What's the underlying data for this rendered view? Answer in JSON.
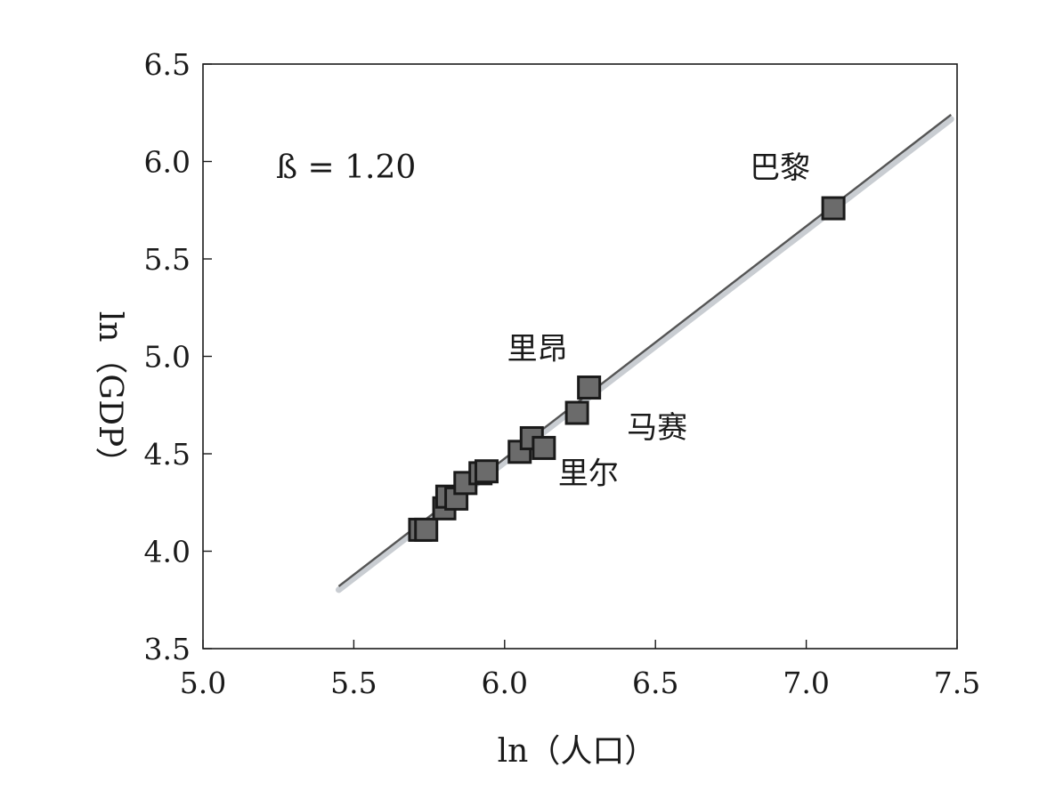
{
  "chart_data": {
    "type": "scatter",
    "xlabel": "ln（人口）",
    "ylabel": "ln（GDP）",
    "xlim": [
      5.0,
      7.5
    ],
    "ylim": [
      3.5,
      6.5
    ],
    "xticks": [
      "5.0",
      "5.5",
      "6.0",
      "6.5",
      "7.0",
      "7.5"
    ],
    "yticks": [
      "3.5",
      "4.0",
      "4.5",
      "5.0",
      "5.5",
      "6.0",
      "6.5"
    ],
    "annotation": "ß = 1.20",
    "grid": false,
    "points": [
      {
        "x": 5.72,
        "y": 4.11
      },
      {
        "x": 5.74,
        "y": 4.11
      },
      {
        "x": 5.8,
        "y": 4.22
      },
      {
        "x": 5.81,
        "y": 4.28
      },
      {
        "x": 5.84,
        "y": 4.27
      },
      {
        "x": 5.87,
        "y": 4.35
      },
      {
        "x": 5.92,
        "y": 4.4
      },
      {
        "x": 5.94,
        "y": 4.41
      },
      {
        "x": 6.05,
        "y": 4.51
      },
      {
        "x": 6.09,
        "y": 4.58
      },
      {
        "x": 6.13,
        "y": 4.53
      },
      {
        "x": 6.24,
        "y": 4.71
      },
      {
        "x": 6.28,
        "y": 4.84
      },
      {
        "x": 7.09,
        "y": 5.76
      }
    ],
    "fit_line": {
      "slope": 1.2,
      "x": [
        5.45,
        7.48
      ],
      "y": [
        3.82,
        6.24
      ]
    },
    "labels": [
      {
        "text": "巴黎",
        "x": 7.09,
        "y": 5.76
      },
      {
        "text": "里昂",
        "x": 6.28,
        "y": 4.84
      },
      {
        "text": "马赛",
        "x": 6.24,
        "y": 4.71
      },
      {
        "text": "里尔",
        "x": 6.13,
        "y": 4.53
      }
    ],
    "colors": {
      "marker_fill": "#6b6b6b",
      "marker_edge": "#1a1a1a",
      "line": "#555555",
      "band": "#c9cdd2",
      "axis": "#1a1a1a"
    }
  }
}
